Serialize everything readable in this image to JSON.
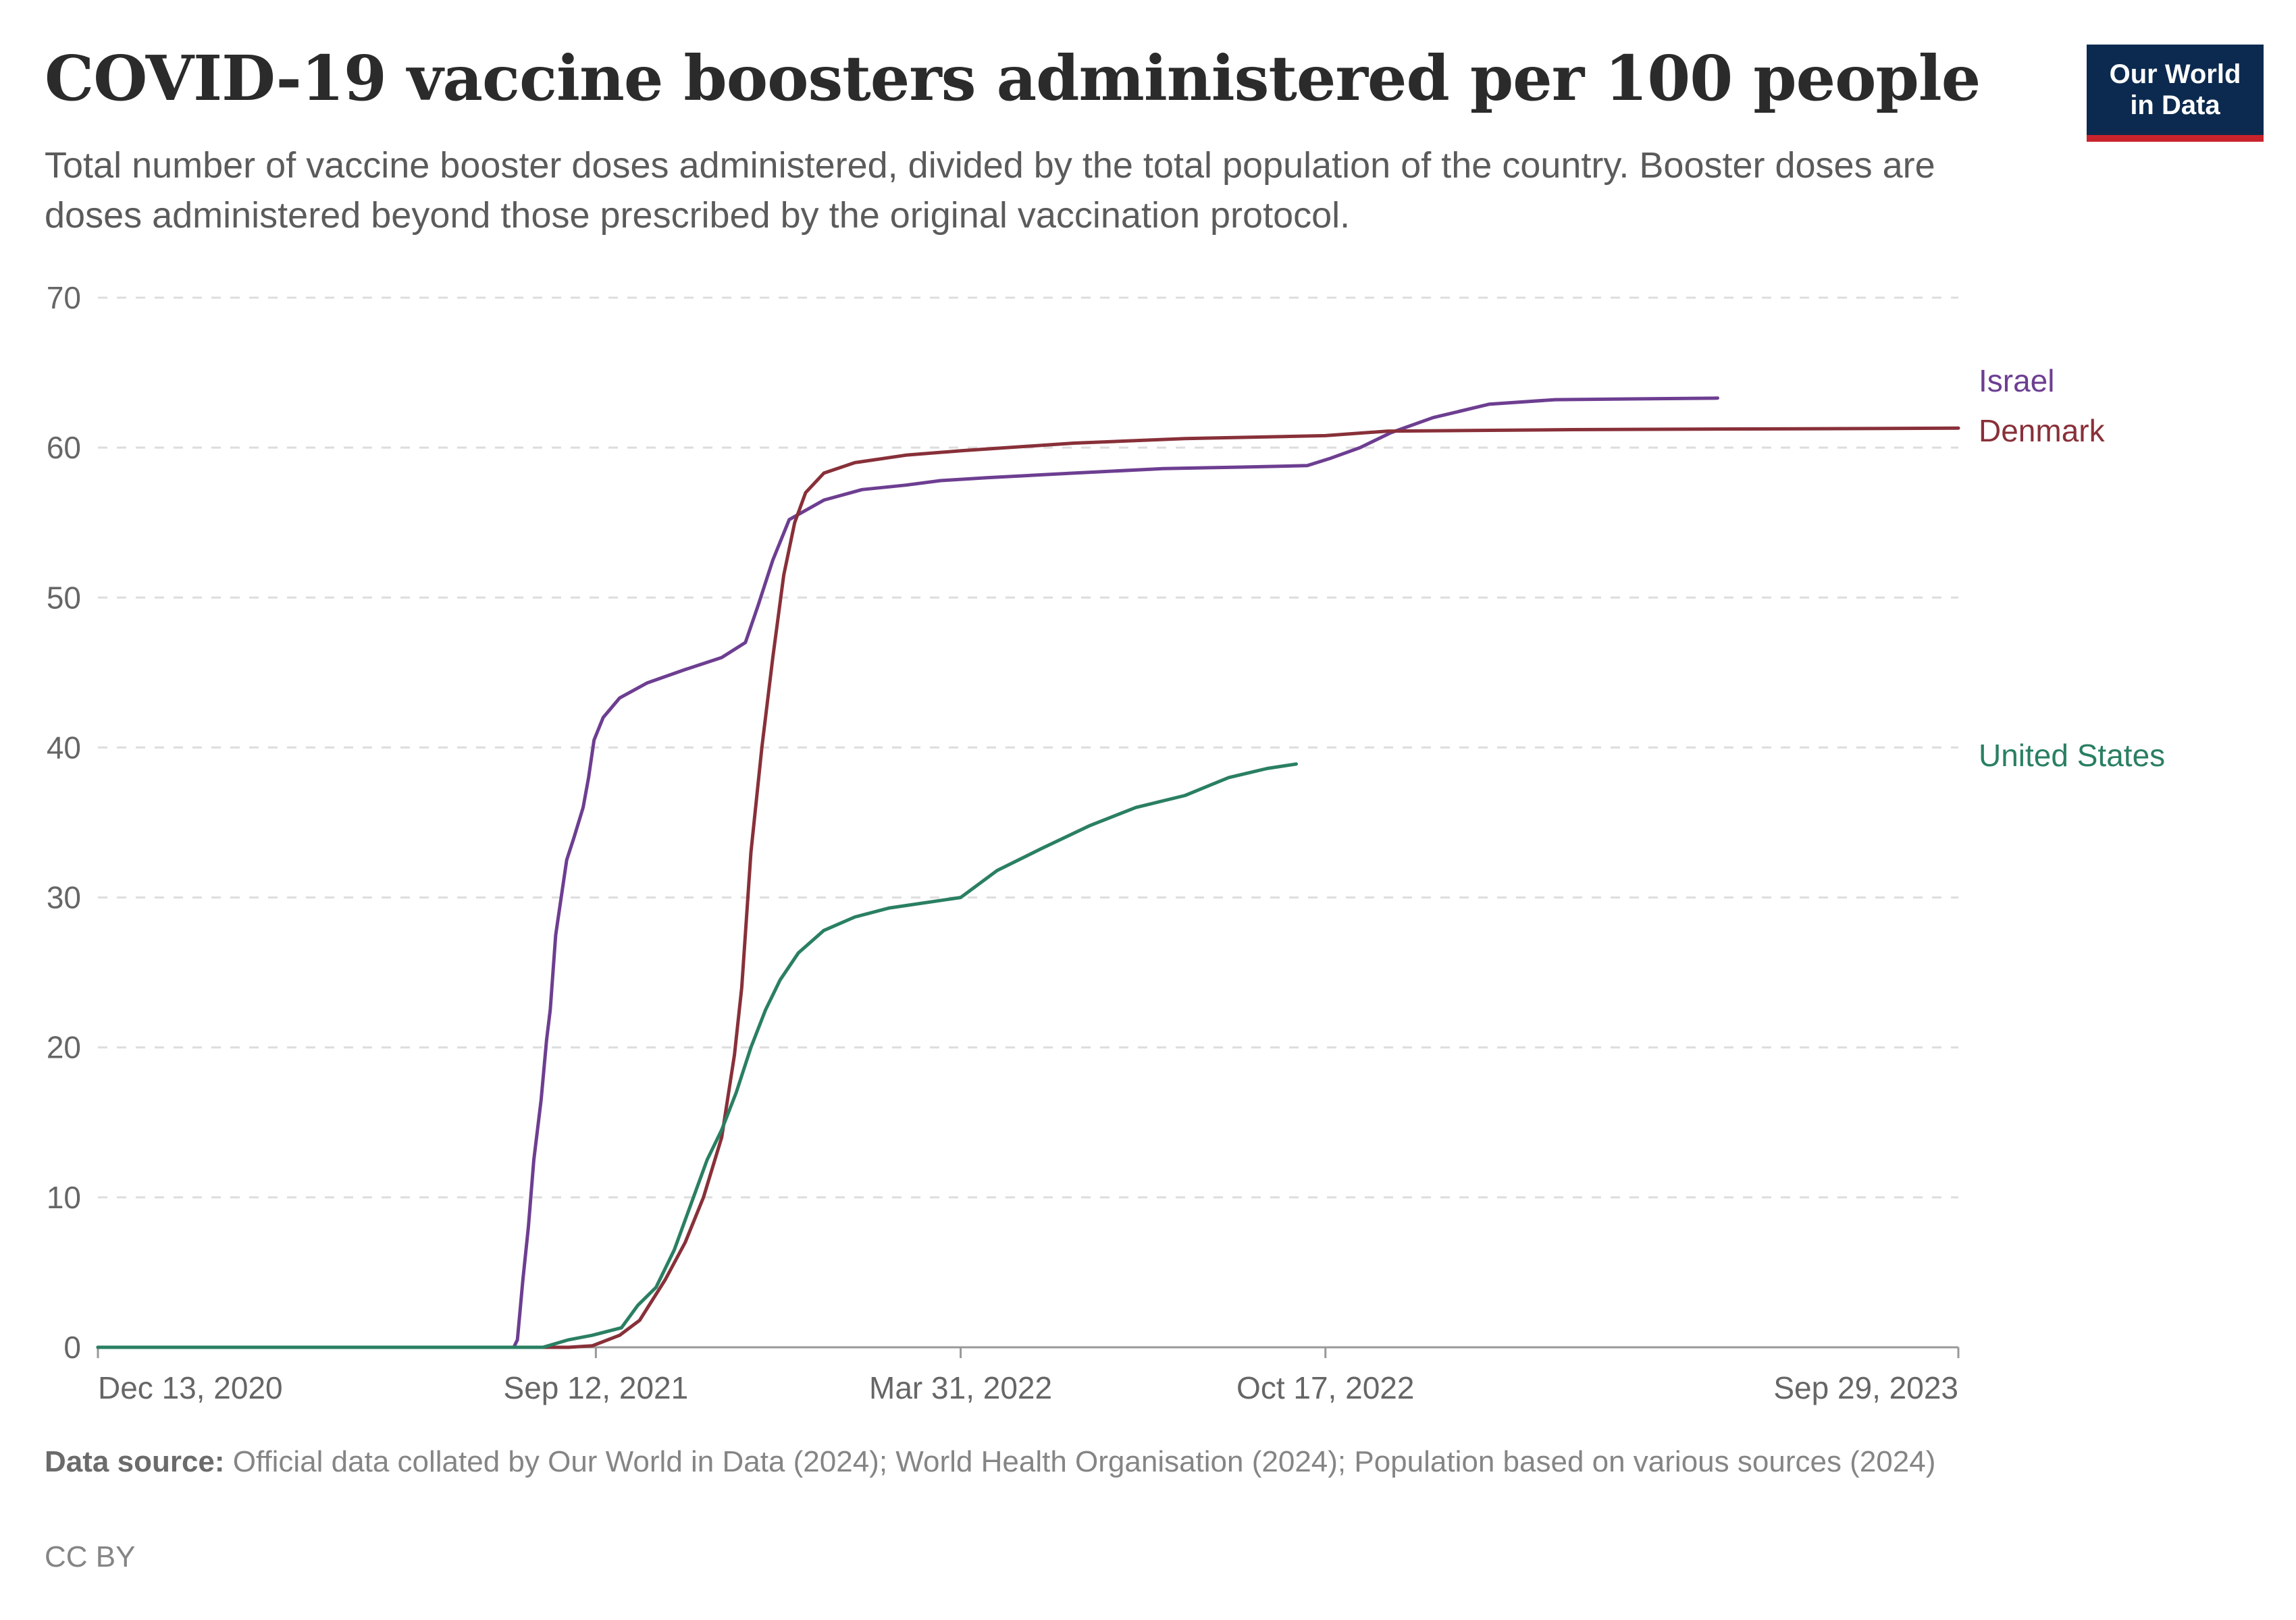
{
  "header": {
    "title": "COVID-19 vaccine boosters administered per 100 people",
    "subtitle": "Total number of vaccine booster doses administered, divided by the total population of the country. Booster doses are doses administered beyond those prescribed by the original vaccination protocol.",
    "logo_line1": "Our World",
    "logo_line2": "in Data"
  },
  "footer": {
    "source_label": "Data source:",
    "source_text": " Official data collated by Our World in Data (2024); World Health Organisation (2024); Population based on various sources (2024)",
    "license": "CC BY"
  },
  "chart_data": {
    "type": "line",
    "title": "COVID-19 vaccine boosters administered per 100 people",
    "xlabel": "",
    "ylabel": "",
    "x_type": "date",
    "xlim": [
      "2020-12-13",
      "2023-09-29"
    ],
    "ylim": [
      0,
      70
    ],
    "yticks": [
      0,
      10,
      20,
      30,
      40,
      50,
      60,
      70
    ],
    "xticks": [
      {
        "date": "2020-12-13",
        "label": "Dec 13, 2020"
      },
      {
        "date": "2021-09-12",
        "label": "Sep 12, 2021"
      },
      {
        "date": "2022-03-31",
        "label": "Mar 31, 2022"
      },
      {
        "date": "2022-10-17",
        "label": "Oct 17, 2022"
      },
      {
        "date": "2023-09-29",
        "label": "Sep 29, 2023"
      }
    ],
    "grid": "horizontal dashed",
    "legend": "inline labels at right",
    "series": [
      {
        "name": "Israel",
        "color": "#6d3e91",
        "points": [
          [
            "2020-12-13",
            0
          ],
          [
            "2021-07-29",
            0
          ],
          [
            "2021-07-31",
            0.5
          ],
          [
            "2021-08-03",
            4.5
          ],
          [
            "2021-08-06",
            8
          ],
          [
            "2021-08-09",
            12.5
          ],
          [
            "2021-08-13",
            16.5
          ],
          [
            "2021-08-16",
            20.5
          ],
          [
            "2021-08-18",
            22.5
          ],
          [
            "2021-08-21",
            27.5
          ],
          [
            "2021-08-24",
            30
          ],
          [
            "2021-08-27",
            32.5
          ],
          [
            "2021-08-31",
            34
          ],
          [
            "2021-09-05",
            36
          ],
          [
            "2021-09-08",
            38
          ],
          [
            "2021-09-11",
            40.5
          ],
          [
            "2021-09-16",
            42
          ],
          [
            "2021-09-25",
            43.3
          ],
          [
            "2021-10-10",
            44.3
          ],
          [
            "2021-10-31",
            45.2
          ],
          [
            "2021-11-20",
            46
          ],
          [
            "2021-12-03",
            47
          ],
          [
            "2021-12-10",
            49.5
          ],
          [
            "2021-12-18",
            52.5
          ],
          [
            "2021-12-27",
            55.2
          ],
          [
            "2022-01-15",
            56.5
          ],
          [
            "2022-02-05",
            57.2
          ],
          [
            "2022-03-01",
            57.5
          ],
          [
            "2022-03-20",
            57.8
          ],
          [
            "2022-04-15",
            58
          ],
          [
            "2022-06-01",
            58.3
          ],
          [
            "2022-07-20",
            58.6
          ],
          [
            "2022-09-01",
            58.7
          ],
          [
            "2022-10-07",
            58.8
          ],
          [
            "2022-10-20",
            59.3
          ],
          [
            "2022-11-05",
            60
          ],
          [
            "2022-11-22",
            61
          ],
          [
            "2022-12-15",
            62
          ],
          [
            "2023-01-15",
            62.9
          ],
          [
            "2023-02-20",
            63.2
          ],
          [
            "2023-05-20",
            63.3
          ]
        ]
      },
      {
        "name": "Denmark",
        "color": "#883039",
        "points": [
          [
            "2020-12-13",
            0
          ],
          [
            "2021-08-28",
            0
          ],
          [
            "2021-09-10",
            0.1
          ],
          [
            "2021-09-25",
            0.8
          ],
          [
            "2021-10-06",
            1.8
          ],
          [
            "2021-10-20",
            4.5
          ],
          [
            "2021-10-31",
            7
          ],
          [
            "2021-11-10",
            10
          ],
          [
            "2021-11-20",
            14
          ],
          [
            "2021-11-27",
            19.5
          ],
          [
            "2021-12-01",
            24
          ],
          [
            "2021-12-06",
            33
          ],
          [
            "2021-12-12",
            40
          ],
          [
            "2021-12-18",
            46
          ],
          [
            "2021-12-24",
            51.5
          ],
          [
            "2021-12-30",
            55
          ],
          [
            "2022-01-05",
            57
          ],
          [
            "2022-01-15",
            58.3
          ],
          [
            "2022-02-01",
            59
          ],
          [
            "2022-03-01",
            59.5
          ],
          [
            "2022-04-01",
            59.8
          ],
          [
            "2022-06-01",
            60.3
          ],
          [
            "2022-08-01",
            60.6
          ],
          [
            "2022-10-17",
            60.8
          ],
          [
            "2022-11-20",
            61.1
          ],
          [
            "2023-03-01",
            61.2
          ],
          [
            "2023-09-29",
            61.3
          ]
        ]
      },
      {
        "name": "United States",
        "color": "#2a7f62",
        "points": [
          [
            "2020-12-13",
            0
          ],
          [
            "2021-08-14",
            0
          ],
          [
            "2021-08-28",
            0.5
          ],
          [
            "2021-09-10",
            0.8
          ],
          [
            "2021-09-26",
            1.3
          ],
          [
            "2021-10-05",
            2.8
          ],
          [
            "2021-10-15",
            4
          ],
          [
            "2021-10-25",
            6.5
          ],
          [
            "2021-11-03",
            9.5
          ],
          [
            "2021-11-12",
            12.5
          ],
          [
            "2021-11-20",
            14.5
          ],
          [
            "2021-11-28",
            17
          ],
          [
            "2021-12-06",
            20
          ],
          [
            "2021-12-14",
            22.5
          ],
          [
            "2021-12-22",
            24.5
          ],
          [
            "2022-01-01",
            26.3
          ],
          [
            "2022-01-15",
            27.8
          ],
          [
            "2022-02-01",
            28.7
          ],
          [
            "2022-02-20",
            29.3
          ],
          [
            "2022-03-31",
            30
          ],
          [
            "2022-04-20",
            31.8
          ],
          [
            "2022-05-15",
            33.3
          ],
          [
            "2022-06-10",
            34.8
          ],
          [
            "2022-07-05",
            36
          ],
          [
            "2022-08-01",
            36.8
          ],
          [
            "2022-08-25",
            38
          ],
          [
            "2022-09-15",
            38.6
          ],
          [
            "2022-10-01",
            38.9
          ]
        ]
      }
    ]
  }
}
